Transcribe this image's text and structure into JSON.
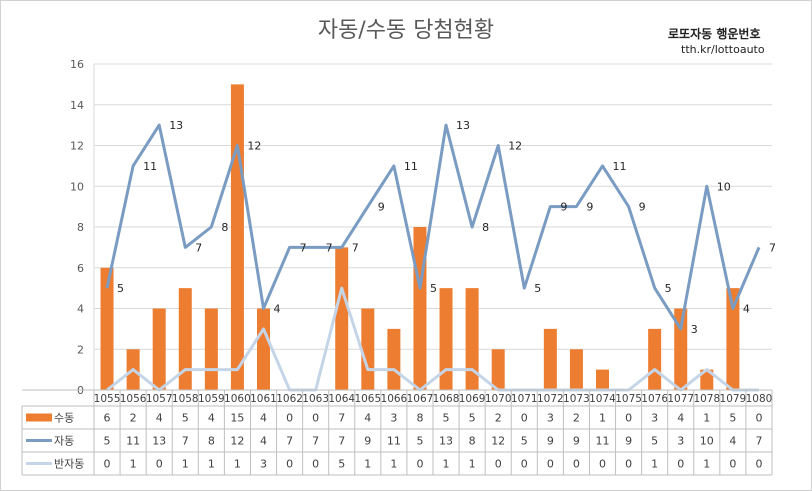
{
  "title": "자동/수동 당첨현황",
  "watermark": {
    "line1": "로또자동 행운번호",
    "line2": "tth.kr/lottoauto"
  },
  "chart_data": {
    "type": "bar+line",
    "title": "자동/수동 당첨현황",
    "categories": [
      "1055",
      "1056",
      "1057",
      "1058",
      "1059",
      "1060",
      "1061",
      "1062",
      "1063",
      "1064",
      "1065",
      "1066",
      "1067",
      "1068",
      "1069",
      "1070",
      "1071",
      "1072",
      "1073",
      "1074",
      "1075",
      "1076",
      "1077",
      "1078",
      "1079",
      "1080"
    ],
    "series": [
      {
        "name": "수동",
        "type": "bar",
        "color": "#ED7D31",
        "values": [
          6,
          2,
          4,
          5,
          4,
          15,
          4,
          0,
          0,
          7,
          4,
          3,
          8,
          5,
          5,
          2,
          0,
          3,
          2,
          1,
          0,
          3,
          4,
          1,
          5,
          0
        ]
      },
      {
        "name": "자동",
        "type": "line",
        "color": "#7A9CC2",
        "values": [
          5,
          11,
          13,
          7,
          8,
          12,
          4,
          7,
          7,
          7,
          9,
          11,
          5,
          13,
          8,
          12,
          5,
          9,
          9,
          11,
          9,
          5,
          3,
          10,
          4,
          7
        ]
      },
      {
        "name": "반자동",
        "type": "line",
        "color": "#C5D5E8",
        "values": [
          0,
          1,
          0,
          1,
          1,
          1,
          3,
          0,
          0,
          5,
          1,
          1,
          0,
          1,
          1,
          0,
          0,
          0,
          0,
          0,
          0,
          1,
          0,
          1,
          0,
          0
        ]
      }
    ],
    "ylim": [
      0,
      16
    ],
    "yticks": [
      0,
      2,
      4,
      6,
      8,
      10,
      12,
      14,
      16
    ],
    "grid": true,
    "data_labels": "자동 only",
    "legend": "data table below chart"
  }
}
